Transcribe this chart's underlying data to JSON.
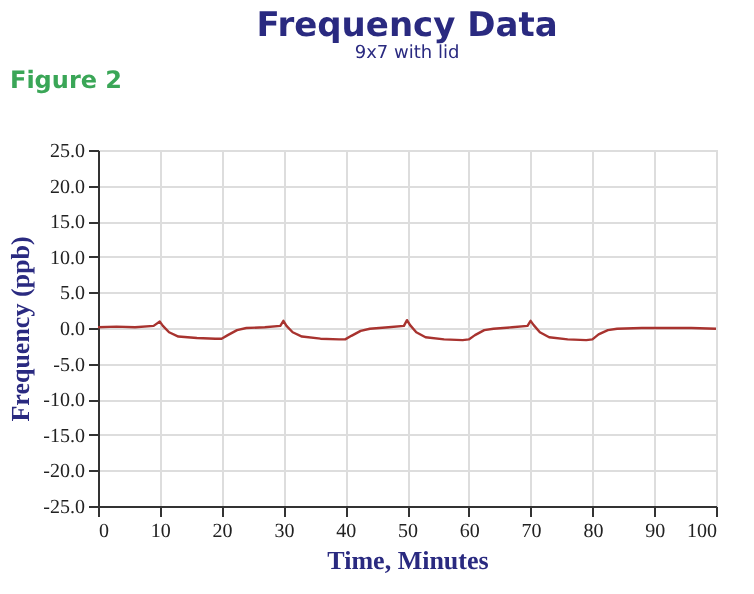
{
  "chart_data": {
    "type": "line",
    "title": "Frequency Data",
    "subtitle": "9x7 with lid",
    "xlabel": "Time, Minutes",
    "ylabel": "Frequency (ppb)",
    "annotations": [
      "Figure 2"
    ],
    "x": [
      0,
      3,
      6,
      9,
      10,
      10.5,
      11.5,
      13,
      16,
      19,
      20,
      21,
      22.5,
      24,
      27,
      29.5,
      30,
      30.5,
      31.5,
      33,
      36,
      39,
      40,
      41,
      42.5,
      44,
      47,
      49.5,
      50,
      50.5,
      51.5,
      53,
      56,
      59,
      60,
      61,
      62.5,
      64,
      67,
      69.5,
      70,
      70.5,
      71.5,
      73,
      76,
      79,
      80,
      81,
      82.5,
      84,
      88,
      92,
      96,
      100
    ],
    "series": [
      {
        "color": "#a8332f",
        "values": [
          0.1,
          0.2,
          0.1,
          0.3,
          0.9,
          0.3,
          -0.6,
          -1.2,
          -1.4,
          -1.5,
          -1.5,
          -1.0,
          -0.3,
          0.0,
          0.1,
          0.3,
          1.0,
          0.3,
          -0.6,
          -1.2,
          -1.5,
          -1.6,
          -1.6,
          -1.1,
          -0.4,
          -0.1,
          0.1,
          0.3,
          1.1,
          0.4,
          -0.6,
          -1.3,
          -1.6,
          -1.7,
          -1.6,
          -1.0,
          -0.3,
          -0.1,
          0.1,
          0.3,
          1.0,
          0.4,
          -0.6,
          -1.3,
          -1.6,
          -1.7,
          -1.6,
          -0.9,
          -0.3,
          -0.1,
          0.0,
          0.0,
          0.0,
          -0.1
        ]
      }
    ],
    "xlim": [
      0,
      100
    ],
    "xticks": [
      0,
      10,
      20,
      30,
      40,
      50,
      60,
      70,
      80,
      90,
      100
    ],
    "ylim": [
      -25,
      25
    ],
    "yticks": [
      {
        "value": -25,
        "label": "-25.0"
      },
      {
        "value": -20,
        "label": "-20.0"
      },
      {
        "value": -15,
        "label": "-15.0"
      },
      {
        "value": -10,
        "label": "-10.0"
      },
      {
        "value": -5,
        "label": "-5.0"
      },
      {
        "value": 0,
        "label": "0.0"
      },
      {
        "value": 5,
        "label": "5.0"
      },
      {
        "value": 10,
        "label": "10.0"
      },
      {
        "value": 15,
        "label": "15.0"
      },
      {
        "value": 20,
        "label": "20.0"
      },
      {
        "value": 25,
        "label": "25.0"
      }
    ],
    "grid": true,
    "marker": "none",
    "line_style": "solid"
  }
}
